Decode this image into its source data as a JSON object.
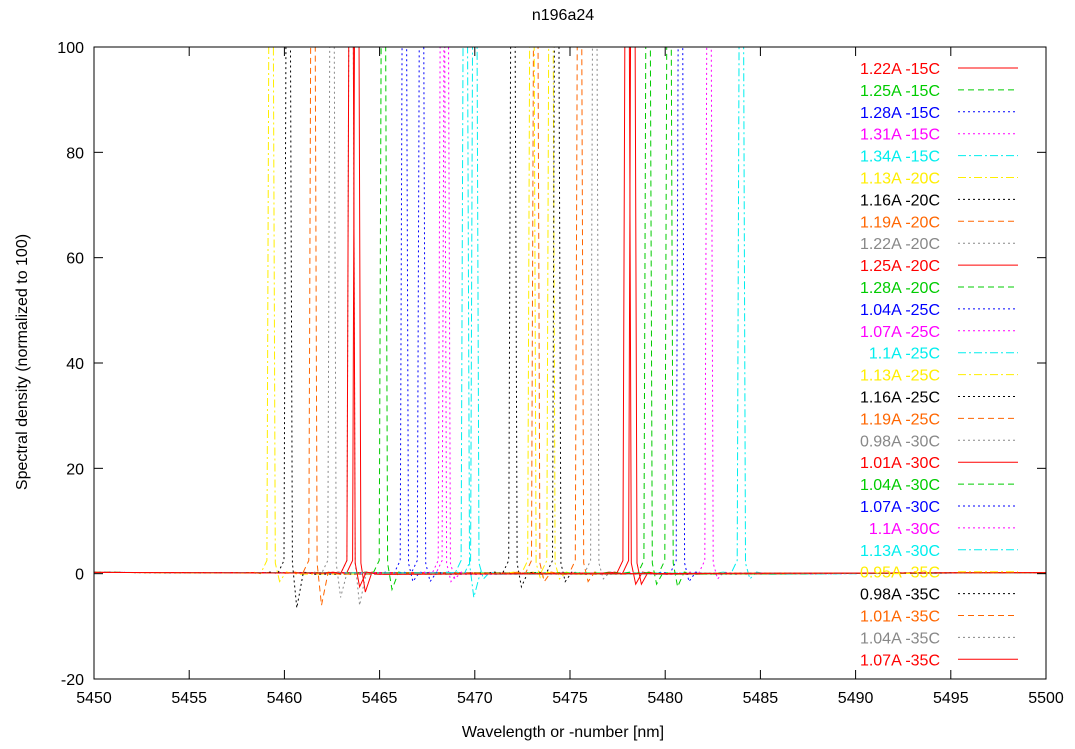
{
  "chart_data": {
    "type": "line",
    "title": "n196a24",
    "xlabel": "Wavelength or -number [nm]",
    "ylabel": "Spectral density (normalized to 100)",
    "xlim": [
      5450,
      5500
    ],
    "ylim": [
      -20,
      100
    ],
    "xticks": [
      5450,
      5455,
      5460,
      5465,
      5470,
      5475,
      5480,
      5485,
      5490,
      5495,
      5500
    ],
    "yticks": [
      -20,
      0,
      20,
      40,
      60,
      80,
      100
    ],
    "grid": false,
    "legend_position": "top-right",
    "series": [
      {
        "name": "1.22A -15C",
        "color": "#ff0000",
        "dash": "solid",
        "peak": 5478.0,
        "dip": -2.0
      },
      {
        "name": "1.25A -15C",
        "color": "#00cc00",
        "dash": "dashed",
        "peak": 5479.1,
        "dip": -2.0
      },
      {
        "name": "1.28A -15C",
        "color": "#0000ff",
        "dash": "dotted",
        "peak": 5480.8,
        "dip": -1.5
      },
      {
        "name": "1.31A -15C",
        "color": "#ff00ff",
        "dash": "dotted",
        "peak": 5482.3,
        "dip": -1.0
      },
      {
        "name": "1.34A -15C",
        "color": "#00eeee",
        "dash": "dashdot",
        "peak": 5484.0,
        "dip": -1.0
      },
      {
        "name": "1.13A -20C",
        "color": "#ffee00",
        "dash": "dashdot",
        "peak": 5474.0,
        "dip": -1.0
      },
      {
        "name": "1.16A -20C",
        "color": "#000000",
        "dash": "dotted",
        "peak": 5474.3,
        "dip": -1.5
      },
      {
        "name": "1.19A -20C",
        "color": "#ff6600",
        "dash": "dashed",
        "peak": 5475.5,
        "dip": -1.5
      },
      {
        "name": "1.22A -20C",
        "color": "#888888",
        "dash": "dotted",
        "peak": 5476.3,
        "dip": -1.0
      },
      {
        "name": "1.25A -20C",
        "color": "#ff0000",
        "dash": "solid",
        "peak": 5478.3,
        "dip": -2.0
      },
      {
        "name": "1.28A -20C",
        "color": "#00cc00",
        "dash": "dashed",
        "peak": 5480.2,
        "dip": -2.5
      },
      {
        "name": "1.04A -25C",
        "color": "#0000ff",
        "dash": "dotted",
        "peak": 5466.3,
        "dip": -1.5
      },
      {
        "name": "1.07A -25C",
        "color": "#ff00ff",
        "dash": "dotted",
        "peak": 5468.3,
        "dip": -1.5
      },
      {
        "name": "1.1A -25C",
        "color": "#00eeee",
        "dash": "dashdot",
        "peak": 5469.5,
        "dip": -4.5
      },
      {
        "name": "1.13A -25C",
        "color": "#ffee00",
        "dash": "dashdot",
        "peak": 5473.0,
        "dip": -1.0
      },
      {
        "name": "1.16A -25C",
        "color": "#000000",
        "dash": "dotted",
        "peak": 5472.0,
        "dip": -2.5
      },
      {
        "name": "1.19A -25C",
        "color": "#ff6600",
        "dash": "dashed",
        "peak": 5473.2,
        "dip": -1.5
      },
      {
        "name": "0.98A -30C",
        "color": "#888888",
        "dash": "dotted",
        "peak": 5463.5,
        "dip": -6.0
      },
      {
        "name": "1.01A -30C",
        "color": "#ff0000",
        "dash": "solid",
        "peak": 5463.8,
        "dip": -3.5
      },
      {
        "name": "1.04A -30C",
        "color": "#00cc00",
        "dash": "dashed",
        "peak": 5465.2,
        "dip": -3.0
      },
      {
        "name": "1.07A -30C",
        "color": "#0000ff",
        "dash": "dotted",
        "peak": 5467.2,
        "dip": -1.5
      },
      {
        "name": "1.1A -30C",
        "color": "#ff00ff",
        "dash": "dotted",
        "peak": 5468.5,
        "dip": -1.0
      },
      {
        "name": "1.13A -30C",
        "color": "#00eeee",
        "dash": "dashdot",
        "peak": 5470.0,
        "dip": -1.0
      },
      {
        "name": "0.95A -35C",
        "color": "#ffee00",
        "dash": "dashdot",
        "peak": 5459.3,
        "dip": -1.5
      },
      {
        "name": "0.98A -35C",
        "color": "#000000",
        "dash": "dotted",
        "peak": 5460.2,
        "dip": -6.5
      },
      {
        "name": "1.01A -35C",
        "color": "#ff6600",
        "dash": "dashed",
        "peak": 5461.5,
        "dip": -6.0
      },
      {
        "name": "1.04A -35C",
        "color": "#888888",
        "dash": "dotted",
        "peak": 5462.5,
        "dip": -4.5
      },
      {
        "name": "1.07A -35C",
        "color": "#ff0000",
        "dash": "solid",
        "peak": 5463.5,
        "dip": -2.5
      }
    ]
  }
}
